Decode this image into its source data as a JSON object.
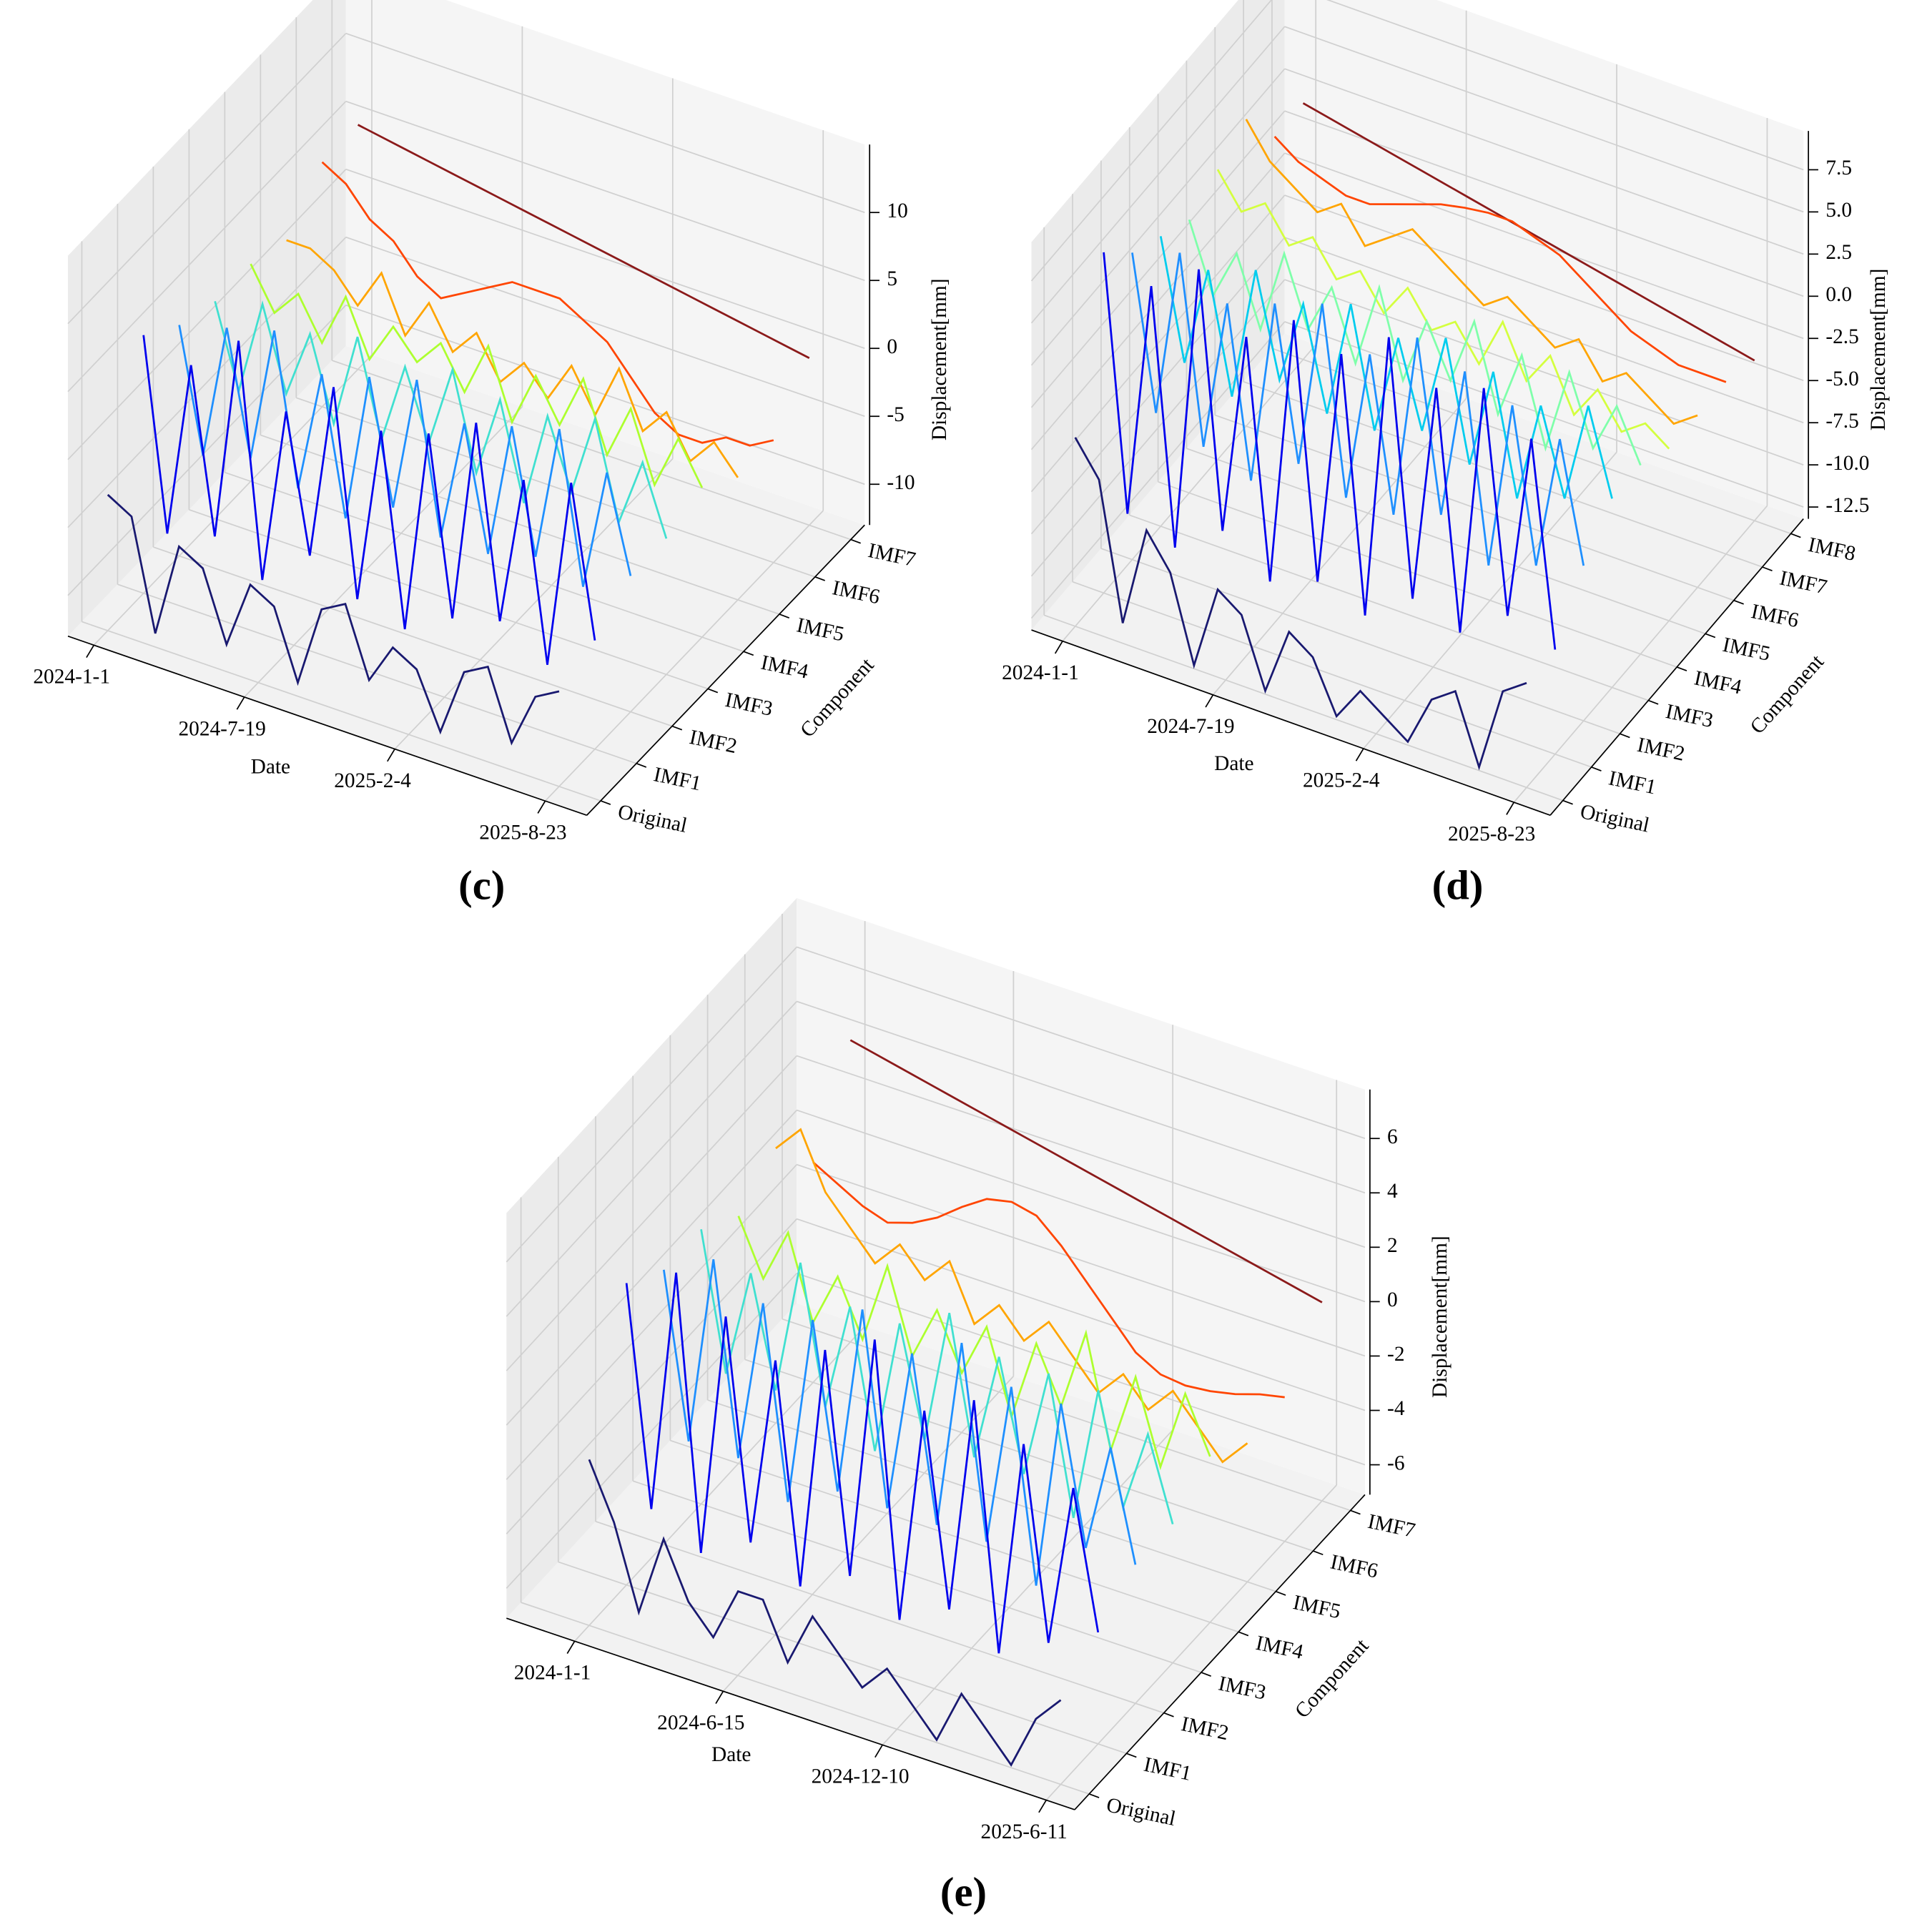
{
  "chart_data": [
    {
      "type": "line3d",
      "panel_label": "(c)",
      "xlabel": "Date",
      "ylabel": "Component",
      "zlabel": "Displacement[mm]",
      "xticks": [
        "2024-1-1",
        "2024-7-19",
        "2025-2-4",
        "2025-8-23"
      ],
      "zlim": [
        -13,
        15
      ],
      "zticks": [
        -10,
        -5,
        0,
        5,
        10
      ],
      "series": [
        {
          "name": "Original",
          "color": "#191970",
          "values": [
            -3,
            -4,
            -12,
            -5,
            -6,
            -11,
            -6,
            -7,
            -12,
            -6,
            -5,
            -10,
            -7,
            -8,
            -12,
            -7,
            -6,
            -11,
            -7,
            -6
          ]
        },
        {
          "name": "IMF1",
          "color": "#0000ee",
          "values": [
            6,
            -8,
            5,
            -7,
            8,
            -9,
            4,
            -6,
            7,
            -8,
            5,
            -9,
            6,
            -7,
            8,
            -6,
            5,
            -8,
            6,
            -5
          ]
        },
        {
          "name": "IMF2",
          "color": "#1e8fff",
          "values": [
            4,
            -5,
            5,
            -4,
            6,
            -5,
            4,
            -6,
            5,
            -4,
            6,
            -5,
            4,
            -5,
            5,
            -4,
            6,
            -5,
            4,
            -3
          ]
        },
        {
          "name": "IMF3",
          "color": "#40e0d0",
          "values": [
            3,
            -3,
            4,
            -2,
            3,
            -3,
            4,
            -3,
            3,
            -2,
            4,
            -3,
            3,
            -4,
            3,
            -2,
            4,
            -3,
            2,
            -3
          ]
        },
        {
          "name": "IMF4",
          "color": "#adff2f",
          "values": [
            3,
            0,
            2,
            -1,
            3,
            -1,
            2,
            0,
            2,
            -1,
            3,
            -2,
            2,
            -1,
            3,
            -2,
            2,
            -3,
            1,
            -2
          ]
        },
        {
          "name": "IMF5",
          "color": "#ffa500",
          "values": [
            2,
            2,
            1,
            -1,
            2,
            -2,
            1,
            -2,
            0,
            -3,
            -1,
            -3,
            0,
            -3,
            1,
            -3,
            -1,
            -4,
            -2,
            -4
          ]
        },
        {
          "name": "IMF6",
          "color": "#ff4500",
          "values": [
            5,
            4,
            2,
            1,
            -1,
            -2,
            -1,
            0,
            1,
            1,
            1,
            0,
            -1,
            -3,
            -5,
            -6,
            -6,
            -5,
            -5,
            -4
          ]
        },
        {
          "name": "IMF7",
          "color": "#8b1a1a",
          "values": [
            5,
            4.7,
            4.4,
            4.1,
            3.8,
            3.5,
            3.2,
            2.9,
            2.6,
            2.3,
            2,
            1.7,
            1.4,
            1.1,
            0.8,
            0.5,
            0.2,
            -0.1,
            -0.4,
            -0.7
          ]
        }
      ]
    },
    {
      "type": "line3d",
      "panel_label": "(d)",
      "xlabel": "Date",
      "ylabel": "Component",
      "zlabel": "Displacement[mm]",
      "xticks": [
        "2024-1-1",
        "2024-7-19",
        "2025-2-4",
        "2025-8-23"
      ],
      "zlim": [
        -13.2,
        9.8
      ],
      "zticks": [
        -12.5,
        {
          "value": -10,
          "label": "-10.0"
        },
        -7.5,
        {
          "value": -5,
          "label": "-5.0"
        },
        -2.5,
        {
          "value": 0,
          "label": "0.0"
        },
        2.5,
        {
          "value": 5,
          "label": "5.0"
        },
        7.5
      ],
      "series": [
        {
          "name": "Original",
          "color": "#191970",
          "values": [
            -2,
            -4,
            -12,
            -6,
            -8,
            -13,
            -8,
            -9,
            -13,
            -9,
            -10,
            -13,
            -11,
            -12,
            -13,
            -10,
            -9,
            -13,
            -8,
            -7
          ]
        },
        {
          "name": "IMF1",
          "color": "#0000ee",
          "values": [
            7,
            -8,
            6,
            -9,
            8,
            -7,
            5,
            -9,
            7,
            -8,
            6,
            -9,
            8,
            -7,
            6,
            -8,
            7,
            -6,
            5,
            -7
          ]
        },
        {
          "name": "IMF2",
          "color": "#1e8fff",
          "values": [
            5,
            -4,
            6,
            -5,
            4,
            -6,
            5,
            -4,
            6,
            -5,
            4,
            -5,
            6,
            -4,
            5,
            -6,
            4,
            -5,
            3,
            -4
          ]
        },
        {
          "name": "IMF3",
          "color": "#00ccee",
          "values": [
            4,
            -3,
            3,
            -4,
            4,
            -2,
            3,
            -3,
            4,
            -3,
            3,
            -2,
            4,
            -3,
            3,
            -4,
            2,
            -3,
            3,
            -2
          ]
        },
        {
          "name": "IMF4",
          "color": "#7fffaa",
          "values": [
            3,
            -1,
            2,
            -2,
            3,
            -1,
            2,
            -2,
            3,
            -2,
            2,
            -1,
            3,
            -2,
            2,
            -3,
            2,
            -2,
            1,
            -2
          ]
        },
        {
          "name": "IMF5",
          "color": "#d4ff3f",
          "values": [
            4,
            2,
            3,
            1,
            2,
            0,
            1,
            -1,
            1,
            -1,
            0,
            -2,
            1,
            -2,
            0,
            -3,
            -1,
            -3,
            -2,
            -3
          ]
        },
        {
          "name": "IMF6",
          "color": "#ffa500",
          "values": [
            5,
            3,
            2,
            1,
            2,
            0,
            1,
            2,
            1,
            0,
            -1,
            0,
            -1,
            -2,
            -1,
            -3,
            -2,
            -3,
            -4,
            -3
          ]
        },
        {
          "name": "IMF7",
          "color": "#ff4500",
          "values": [
            2,
            1,
            0.5,
            0,
            0,
            0.5,
            1,
            1.5,
            1.8,
            2,
            2,
            1.5,
            1,
            0,
            -1,
            -2,
            -2.5,
            -3,
            -3,
            -3
          ]
        },
        {
          "name": "IMF8",
          "color": "#8b1a1a",
          "values": [
            2,
            1.7,
            1.4,
            1.1,
            0.8,
            0.5,
            0.2,
            -0.1,
            -0.4,
            -0.7,
            -1,
            -1.3,
            -1.6,
            -1.9,
            -2.2,
            -2.5,
            -2.8,
            -3.1,
            -3.4,
            -3.7
          ]
        }
      ]
    },
    {
      "type": "line3d",
      "panel_label": "(e)",
      "xlabel": "Date",
      "ylabel": "Component",
      "zlabel": "Displacement[mm]",
      "xticks": [
        "2024-1-1",
        "2024-6-15",
        "2024-12-10",
        "2025-6-11"
      ],
      "zlim": [
        -7.1,
        7.8
      ],
      "zticks": [
        -6,
        -4,
        -2,
        0,
        2,
        4,
        6
      ],
      "series": [
        {
          "name": "Original",
          "color": "#191970",
          "values": [
            -1,
            -3,
            -6,
            -3,
            -5,
            -6,
            -4,
            -4,
            -6,
            -4,
            -5,
            -6,
            -5,
            -6,
            -7,
            -5,
            -6,
            -7,
            -5,
            -4
          ]
        },
        {
          "name": "IMF1",
          "color": "#0000ee",
          "values": [
            4,
            -4,
            5,
            -5,
            4,
            -4,
            3,
            -5,
            4,
            -4,
            5,
            -5,
            3,
            -4,
            4,
            -5,
            3,
            -4,
            2,
            -3
          ]
        },
        {
          "name": "IMF2",
          "color": "#1e8fff",
          "values": [
            3,
            -3,
            4,
            -3,
            3,
            -4,
            3,
            -3,
            4,
            -3,
            3,
            -3,
            4,
            -3,
            3,
            -4,
            3,
            -2,
            2,
            -2
          ]
        },
        {
          "name": "IMF3",
          "color": "#40e0d0",
          "values": [
            3,
            -2,
            2,
            -2,
            3,
            -2,
            2,
            -3,
            2,
            -2,
            3,
            -2,
            2,
            -2,
            2,
            -3,
            2,
            -2,
            1,
            -2
          ]
        },
        {
          "name": "IMF4",
          "color": "#adff2f",
          "values": [
            2,
            0,
            2,
            -1,
            1,
            -1,
            2,
            -1,
            1,
            -1,
            1,
            -2,
            1,
            -1,
            2,
            -2,
            1,
            -2,
            1,
            -1
          ]
        },
        {
          "name": "IMF5",
          "color": "#ffa500",
          "values": [
            3,
            4,
            2,
            1,
            0,
            1,
            0,
            1,
            -1,
            0,
            -1,
            0,
            -1,
            -2,
            -1,
            -2,
            -1,
            -2,
            -3,
            -2
          ]
        },
        {
          "name": "IMF6",
          "color": "#ff4500",
          "values": [
            1,
            0.5,
            0,
            -0.3,
            0,
            0.5,
            1.2,
            1.8,
            2,
            1.8,
            1,
            0,
            -1,
            -2,
            -2.5,
            -2.6,
            -2.5,
            -2.3,
            -2,
            -1.8
          ]
        },
        {
          "name": "IMF7",
          "color": "#8b1a1a",
          "values": [
            4,
            3.8,
            3.6,
            3.4,
            3.2,
            3,
            2.8,
            2.6,
            2.4,
            2.2,
            2,
            1.8,
            1.6,
            1.4,
            1.2,
            1,
            0.8,
            0.6,
            0.4,
            0.2
          ]
        }
      ]
    }
  ]
}
